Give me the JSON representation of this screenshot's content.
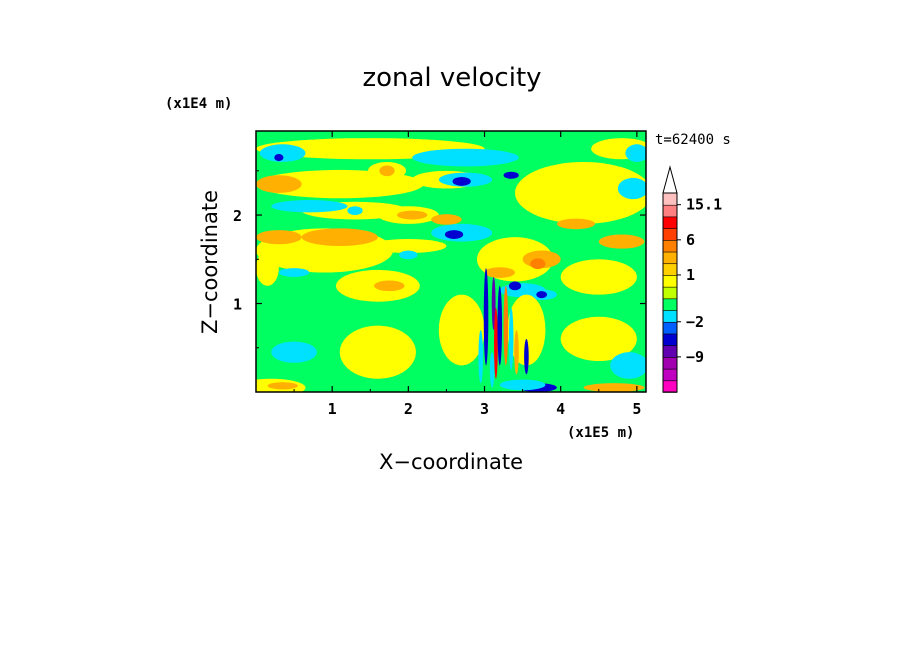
{
  "chart_data": {
    "type": "heatmap",
    "title": "zonal velocity",
    "xlabel": "X−coordinate",
    "ylabel": "Z−coordinate",
    "x_unit": "(x1E5 m)",
    "y_unit": "(x1E4 m)",
    "time_label": "t=62400 s",
    "xlim": [
      0,
      5.12
    ],
    "ylim": [
      0,
      2.95
    ],
    "x_ticks": [
      1,
      2,
      3,
      4,
      5
    ],
    "x_tick_labels": [
      "1",
      "2",
      "3",
      "4",
      "5"
    ],
    "y_ticks": [
      1,
      2
    ],
    "y_tick_labels": [
      "1",
      "2"
    ],
    "colorbar": {
      "labels": [
        {
          "value": 15.1,
          "text": "15.1"
        },
        {
          "value": 6,
          "text": "6"
        },
        {
          "value": 1,
          "text": "1"
        },
        {
          "value": -2,
          "text": "−2"
        },
        {
          "value": -9,
          "text": "−9"
        }
      ],
      "levels": [
        {
          "lo": -20,
          "hi": -15,
          "color": "#ff00c0"
        },
        {
          "lo": -15,
          "hi": -12,
          "color": "#c000c0"
        },
        {
          "lo": -12,
          "hi": -9,
          "color": "#a000b0"
        },
        {
          "lo": -9,
          "hi": -6,
          "color": "#6000b0"
        },
        {
          "lo": -6,
          "hi": -4,
          "color": "#0000d0"
        },
        {
          "lo": -4,
          "hi": -2,
          "color": "#0060ff"
        },
        {
          "lo": -2,
          "hi": -1,
          "color": "#00e0ff"
        },
        {
          "lo": -1,
          "hi": 0,
          "color": "#00ff60"
        },
        {
          "lo": 0,
          "hi": 0.5,
          "color": "#c0ff00"
        },
        {
          "lo": 0.5,
          "hi": 1,
          "color": "#ffff00"
        },
        {
          "lo": 1,
          "hi": 2,
          "color": "#ffd000"
        },
        {
          "lo": 2,
          "hi": 4,
          "color": "#ffb000"
        },
        {
          "lo": 4,
          "hi": 6,
          "color": "#ff8000"
        },
        {
          "lo": 6,
          "hi": 9,
          "color": "#ff4000"
        },
        {
          "lo": 9,
          "hi": 12,
          "color": "#ff0000"
        },
        {
          "lo": 12,
          "hi": 15.1,
          "color": "#ff8080"
        },
        {
          "lo": 15.1,
          "hi": 20,
          "color": "#ffc0c0"
        }
      ],
      "overflow_color": "#ffffff"
    },
    "background_value": -0.5,
    "regions": [
      {
        "kind": "ellipse",
        "cx": 1.5,
        "cy": 2.75,
        "rx": 1.5,
        "ry": 0.12,
        "value": 0.7
      },
      {
        "kind": "ellipse",
        "cx": 4.8,
        "cy": 2.75,
        "rx": 0.4,
        "ry": 0.12,
        "value": 0.7
      },
      {
        "kind": "ellipse",
        "cx": 0.35,
        "cy": 2.7,
        "rx": 0.3,
        "ry": 0.1,
        "value": -1.5
      },
      {
        "kind": "ellipse",
        "cx": 0.3,
        "cy": 2.65,
        "rx": 0.06,
        "ry": 0.04,
        "value": -5
      },
      {
        "kind": "ellipse",
        "cx": 2.75,
        "cy": 2.65,
        "rx": 0.7,
        "ry": 0.1,
        "value": -1.5
      },
      {
        "kind": "ellipse",
        "cx": 5.0,
        "cy": 2.7,
        "rx": 0.15,
        "ry": 0.1,
        "value": -1.5
      },
      {
        "kind": "ellipse",
        "cx": 1.1,
        "cy": 2.35,
        "rx": 1.1,
        "ry": 0.16,
        "value": 0.7
      },
      {
        "kind": "ellipse",
        "cx": 0.3,
        "cy": 2.35,
        "rx": 0.3,
        "ry": 0.1,
        "value": 3
      },
      {
        "kind": "ellipse",
        "cx": 1.72,
        "cy": 2.5,
        "rx": 0.25,
        "ry": 0.1,
        "value": 0.7
      },
      {
        "kind": "ellipse",
        "cx": 1.72,
        "cy": 2.5,
        "rx": 0.1,
        "ry": 0.06,
        "value": 3
      },
      {
        "kind": "ellipse",
        "cx": 2.5,
        "cy": 2.4,
        "rx": 0.45,
        "ry": 0.1,
        "value": 0.7
      },
      {
        "kind": "ellipse",
        "cx": 2.75,
        "cy": 2.4,
        "rx": 0.35,
        "ry": 0.08,
        "value": -1.5
      },
      {
        "kind": "ellipse",
        "cx": 2.7,
        "cy": 2.38,
        "rx": 0.12,
        "ry": 0.05,
        "value": -5
      },
      {
        "kind": "ellipse",
        "cx": 3.35,
        "cy": 2.45,
        "rx": 0.1,
        "ry": 0.04,
        "value": -5
      },
      {
        "kind": "ellipse",
        "cx": 4.3,
        "cy": 2.25,
        "rx": 0.9,
        "ry": 0.35,
        "value": 0.7
      },
      {
        "kind": "ellipse",
        "cx": 4.95,
        "cy": 2.3,
        "rx": 0.2,
        "ry": 0.12,
        "value": -1.5
      },
      {
        "kind": "ellipse",
        "cx": 1.3,
        "cy": 2.05,
        "rx": 0.7,
        "ry": 0.1,
        "value": 0.7
      },
      {
        "kind": "ellipse",
        "cx": 0.7,
        "cy": 2.1,
        "rx": 0.5,
        "ry": 0.07,
        "value": -1.5
      },
      {
        "kind": "ellipse",
        "cx": 1.3,
        "cy": 2.05,
        "rx": 0.1,
        "ry": 0.05,
        "value": -1.5
      },
      {
        "kind": "ellipse",
        "cx": 2.0,
        "cy": 2.0,
        "rx": 0.4,
        "ry": 0.1,
        "value": 0.7
      },
      {
        "kind": "ellipse",
        "cx": 2.05,
        "cy": 2.0,
        "rx": 0.2,
        "ry": 0.05,
        "value": 3
      },
      {
        "kind": "ellipse",
        "cx": 2.7,
        "cy": 1.8,
        "rx": 0.4,
        "ry": 0.1,
        "value": -1.5
      },
      {
        "kind": "ellipse",
        "cx": 2.6,
        "cy": 1.78,
        "rx": 0.12,
        "ry": 0.05,
        "value": -5
      },
      {
        "kind": "ellipse",
        "cx": 2.5,
        "cy": 1.95,
        "rx": 0.2,
        "ry": 0.06,
        "value": 3
      },
      {
        "kind": "ellipse",
        "cx": 0.9,
        "cy": 1.6,
        "rx": 0.9,
        "ry": 0.25,
        "value": 0.7
      },
      {
        "kind": "ellipse",
        "cx": 0.3,
        "cy": 1.75,
        "rx": 0.3,
        "ry": 0.08,
        "value": 3
      },
      {
        "kind": "ellipse",
        "cx": 1.1,
        "cy": 1.75,
        "rx": 0.5,
        "ry": 0.1,
        "value": 3
      },
      {
        "kind": "ellipse",
        "cx": 0.15,
        "cy": 1.4,
        "rx": 0.15,
        "ry": 0.2,
        "value": 0.7
      },
      {
        "kind": "ellipse",
        "cx": 0.5,
        "cy": 1.35,
        "rx": 0.2,
        "ry": 0.05,
        "value": -1.5
      },
      {
        "kind": "ellipse",
        "cx": 2.0,
        "cy": 1.65,
        "rx": 0.5,
        "ry": 0.08,
        "value": 0.7
      },
      {
        "kind": "ellipse",
        "cx": 2.0,
        "cy": 1.55,
        "rx": 0.12,
        "ry": 0.05,
        "value": -1.5
      },
      {
        "kind": "ellipse",
        "cx": 3.4,
        "cy": 1.5,
        "rx": 0.5,
        "ry": 0.25,
        "value": 0.7
      },
      {
        "kind": "ellipse",
        "cx": 3.75,
        "cy": 1.5,
        "rx": 0.25,
        "ry": 0.1,
        "value": 3
      },
      {
        "kind": "ellipse",
        "cx": 3.7,
        "cy": 1.45,
        "rx": 0.1,
        "ry": 0.06,
        "value": 5
      },
      {
        "kind": "ellipse",
        "cx": 3.2,
        "cy": 1.35,
        "rx": 0.2,
        "ry": 0.06,
        "value": 3
      },
      {
        "kind": "ellipse",
        "cx": 4.5,
        "cy": 1.3,
        "rx": 0.5,
        "ry": 0.2,
        "value": 0.7
      },
      {
        "kind": "ellipse",
        "cx": 3.5,
        "cy": 1.15,
        "rx": 0.3,
        "ry": 0.08,
        "value": -1.5
      },
      {
        "kind": "ellipse",
        "cx": 3.4,
        "cy": 1.2,
        "rx": 0.08,
        "ry": 0.05,
        "value": -5
      },
      {
        "kind": "ellipse",
        "cx": 3.75,
        "cy": 1.1,
        "rx": 0.2,
        "ry": 0.06,
        "value": -1.5
      },
      {
        "kind": "ellipse",
        "cx": 3.75,
        "cy": 1.1,
        "rx": 0.07,
        "ry": 0.04,
        "value": -5
      },
      {
        "kind": "ellipse",
        "cx": 1.6,
        "cy": 1.2,
        "rx": 0.55,
        "ry": 0.18,
        "value": 0.7
      },
      {
        "kind": "ellipse",
        "cx": 1.75,
        "cy": 1.2,
        "rx": 0.2,
        "ry": 0.06,
        "value": 3
      },
      {
        "kind": "ellipse",
        "cx": 1.6,
        "cy": 0.45,
        "rx": 0.5,
        "ry": 0.3,
        "value": 0.7
      },
      {
        "kind": "ellipse",
        "cx": 0.5,
        "cy": 0.45,
        "rx": 0.3,
        "ry": 0.12,
        "value": -1.5
      },
      {
        "kind": "ellipse",
        "cx": 0.2,
        "cy": 0.05,
        "rx": 0.45,
        "ry": 0.1,
        "value": 0.7
      },
      {
        "kind": "ellipse",
        "cx": 0.35,
        "cy": 0.07,
        "rx": 0.2,
        "ry": 0.04,
        "value": 3
      },
      {
        "kind": "ellipse",
        "cx": 2.7,
        "cy": 0.7,
        "rx": 0.3,
        "ry": 0.4,
        "value": 0.7
      },
      {
        "kind": "ellipse",
        "cx": 3.55,
        "cy": 0.7,
        "rx": 0.25,
        "ry": 0.4,
        "value": 0.7
      },
      {
        "kind": "ellipse",
        "cx": 3.7,
        "cy": 0.05,
        "rx": 0.25,
        "ry": 0.05,
        "value": -5
      },
      {
        "kind": "ellipse",
        "cx": 3.5,
        "cy": 0.08,
        "rx": 0.3,
        "ry": 0.06,
        "value": -1.5
      },
      {
        "kind": "ellipse",
        "cx": 4.5,
        "cy": 0.6,
        "rx": 0.5,
        "ry": 0.25,
        "value": 0.7
      },
      {
        "kind": "ellipse",
        "cx": 4.9,
        "cy": 0.3,
        "rx": 0.25,
        "ry": 0.15,
        "value": -1.5
      },
      {
        "kind": "ellipse",
        "cx": 4.7,
        "cy": 0.05,
        "rx": 0.4,
        "ry": 0.05,
        "value": 3
      },
      {
        "kind": "ellipse",
        "cx": 4.8,
        "cy": 1.7,
        "rx": 0.3,
        "ry": 0.08,
        "value": 3
      },
      {
        "kind": "ellipse",
        "cx": 4.2,
        "cy": 1.9,
        "rx": 0.25,
        "ry": 0.06,
        "value": 3
      },
      {
        "kind": "ellipse",
        "cx": 1.15,
        "cy": 0.05,
        "rx": 0.15,
        "ry": 0.03,
        "value": -0.5
      },
      {
        "kind": "ellipse",
        "cx": 3.02,
        "cy": 0.85,
        "rx": 0.03,
        "ry": 0.55,
        "value": -5
      },
      {
        "kind": "ellipse",
        "cx": 3.12,
        "cy": 1.0,
        "rx": 0.025,
        "ry": 0.3,
        "value": -7
      },
      {
        "kind": "ellipse",
        "cx": 3.15,
        "cy": 0.55,
        "rx": 0.025,
        "ry": 0.4,
        "value": 10
      },
      {
        "kind": "ellipse",
        "cx": 3.2,
        "cy": 0.75,
        "rx": 0.03,
        "ry": 0.45,
        "value": -5
      },
      {
        "kind": "ellipse",
        "cx": 3.28,
        "cy": 0.75,
        "rx": 0.03,
        "ry": 0.45,
        "value": 5
      },
      {
        "kind": "ellipse",
        "cx": 3.35,
        "cy": 0.6,
        "rx": 0.03,
        "ry": 0.35,
        "value": -1.5
      },
      {
        "kind": "ellipse",
        "cx": 3.42,
        "cy": 0.45,
        "rx": 0.03,
        "ry": 0.25,
        "value": 3
      },
      {
        "kind": "ellipse",
        "cx": 2.95,
        "cy": 0.4,
        "rx": 0.03,
        "ry": 0.3,
        "value": -1.5
      },
      {
        "kind": "ellipse",
        "cx": 3.1,
        "cy": 0.25,
        "rx": 0.03,
        "ry": 0.2,
        "value": -1.5
      },
      {
        "kind": "ellipse",
        "cx": 3.55,
        "cy": 0.4,
        "rx": 0.03,
        "ry": 0.2,
        "value": -5
      }
    ]
  }
}
